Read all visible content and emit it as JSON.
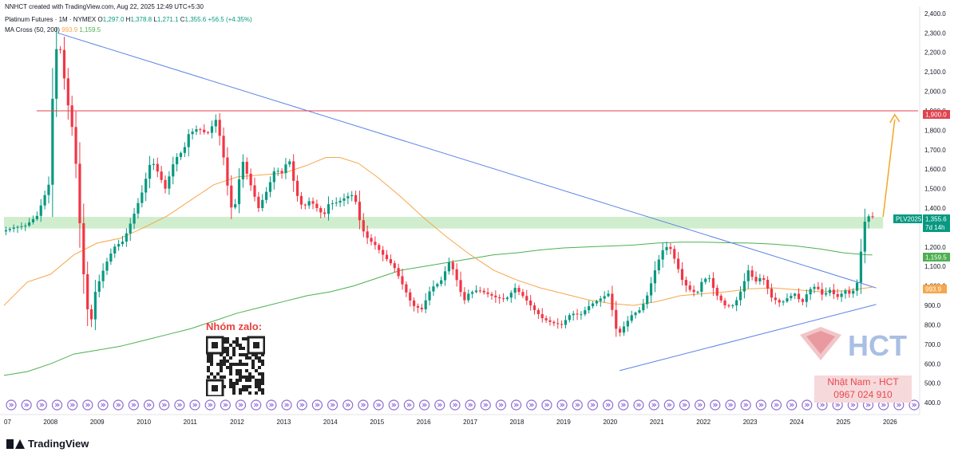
{
  "header": {
    "creator": "NNHCT created with TradingView.com, Aug 22, 2025 12:49 UTC+5:30",
    "symbol_name": "Platinum Futures · 1M · NYMEX",
    "ohlc": {
      "o_label": "O",
      "o": "1,297.0",
      "h_label": "H",
      "h": "1,378.8",
      "l_label": "L",
      "l": "1,271.1",
      "c_label": "C",
      "c": "1,355.6",
      "change": "+56.5 (+4.35%)"
    },
    "indicator_name": "MA Cross (50, 200)",
    "ma50_value": "993.9",
    "ma200_value": "1,159.5"
  },
  "price_tags": {
    "resistance": "1,900.0",
    "symbol": "PLV2025",
    "last_price": "1,355.6",
    "countdown": "7d 14h",
    "ma200": "1,159.5",
    "ma50": "993.9"
  },
  "overlay": {
    "zalo_title": "Nhóm zalo:",
    "contact_name": "Nhật Nam - HCT",
    "contact_phone": "0967 024 910",
    "brand": "HCT"
  },
  "footer": {
    "logo_text": "TradingView"
  },
  "colors": {
    "up": "#089981",
    "down": "#f23645",
    "ma50": "#f7a64a",
    "ma200": "#4caf50",
    "trendline": "#5b83e6",
    "resistance": "#e0424e",
    "zone": "#c8ebc6",
    "arrow": "#f5a623",
    "event": "#8e6bd6"
  },
  "chart_data": {
    "type": "candlestick",
    "title": "Platinum Futures · 1M · NYMEX",
    "y_ticks": [
      "400.0",
      "500.0",
      "600.0",
      "700.0",
      "800.0",
      "900.0",
      "1,000.0",
      "1,100.0",
      "1,200.0",
      "1,300.0",
      "1,400.0",
      "1,500.0",
      "1,600.0",
      "1,700.0",
      "1,800.0",
      "1,900.0",
      "2,000.0",
      "2,100.0",
      "2,200.0",
      "2,300.0",
      "2,400.0"
    ],
    "y_tick_values": [
      400,
      500,
      600,
      700,
      800,
      900,
      1000,
      1100,
      1200,
      1300,
      1400,
      1500,
      1600,
      1700,
      1800,
      1900,
      2000,
      2100,
      2200,
      2300,
      2400
    ],
    "x_ticks": [
      "07",
      "2008",
      "2009",
      "2010",
      "2011",
      "2012",
      "2013",
      "2014",
      "2015",
      "2016",
      "2017",
      "2018",
      "2019",
      "2020",
      "2021",
      "2022",
      "2023",
      "2024",
      "2025",
      "2026"
    ],
    "x_tick_values": [
      2007.0,
      2008.0,
      2009.0,
      2010.0,
      2011.0,
      2012.0,
      2013.0,
      2014.0,
      2015.0,
      2016.0,
      2017.0,
      2018.0,
      2019.0,
      2020.0,
      2021.0,
      2022.0,
      2023.0,
      2024.0,
      2025.0,
      2026.0
    ],
    "xlim": [
      2007.0,
      2026.6
    ],
    "ylim": [
      380,
      2420
    ],
    "price_path": [
      [
        2007.0,
        1280
      ],
      [
        2007.25,
        1300
      ],
      [
        2007.5,
        1310
      ],
      [
        2007.75,
        1360
      ],
      [
        2008.0,
        1520
      ],
      [
        2008.1,
        2050
      ],
      [
        2008.2,
        2300
      ],
      [
        2008.4,
        1950
      ],
      [
        2008.55,
        1750
      ],
      [
        2008.7,
        1200
      ],
      [
        2008.8,
        920
      ],
      [
        2008.9,
        800
      ],
      [
        2009.0,
        970
      ],
      [
        2009.2,
        1100
      ],
      [
        2009.4,
        1200
      ],
      [
        2009.6,
        1230
      ],
      [
        2009.8,
        1350
      ],
      [
        2010.0,
        1480
      ],
      [
        2010.2,
        1650
      ],
      [
        2010.35,
        1580
      ],
      [
        2010.5,
        1500
      ],
      [
        2010.7,
        1650
      ],
      [
        2010.9,
        1700
      ],
      [
        2011.0,
        1780
      ],
      [
        2011.2,
        1810
      ],
      [
        2011.4,
        1780
      ],
      [
        2011.6,
        1860
      ],
      [
        2011.75,
        1660
      ],
      [
        2011.9,
        1400
      ],
      [
        2012.0,
        1420
      ],
      [
        2012.15,
        1650
      ],
      [
        2012.3,
        1540
      ],
      [
        2012.5,
        1400
      ],
      [
        2012.7,
        1500
      ],
      [
        2012.85,
        1600
      ],
      [
        2013.0,
        1580
      ],
      [
        2013.15,
        1660
      ],
      [
        2013.3,
        1480
      ],
      [
        2013.45,
        1400
      ],
      [
        2013.6,
        1440
      ],
      [
        2013.75,
        1400
      ],
      [
        2013.9,
        1360
      ],
      [
        2014.0,
        1420
      ],
      [
        2014.2,
        1430
      ],
      [
        2014.4,
        1460
      ],
      [
        2014.55,
        1470
      ],
      [
        2014.7,
        1300
      ],
      [
        2014.85,
        1240
      ],
      [
        2015.0,
        1210
      ],
      [
        2015.2,
        1150
      ],
      [
        2015.4,
        1100
      ],
      [
        2015.6,
        1000
      ],
      [
        2015.8,
        900
      ],
      [
        2016.0,
        880
      ],
      [
        2016.2,
        990
      ],
      [
        2016.4,
        1020
      ],
      [
        2016.6,
        1130
      ],
      [
        2016.75,
        1030
      ],
      [
        2016.9,
        920
      ],
      [
        2017.0,
        960
      ],
      [
        2017.2,
        980
      ],
      [
        2017.4,
        960
      ],
      [
        2017.6,
        940
      ],
      [
        2017.8,
        930
      ],
      [
        2018.0,
        990
      ],
      [
        2018.2,
        940
      ],
      [
        2018.4,
        880
      ],
      [
        2018.6,
        830
      ],
      [
        2018.8,
        810
      ],
      [
        2019.0,
        800
      ],
      [
        2019.2,
        860
      ],
      [
        2019.4,
        850
      ],
      [
        2019.6,
        900
      ],
      [
        2019.8,
        930
      ],
      [
        2020.0,
        960
      ],
      [
        2020.1,
        860
      ],
      [
        2020.2,
        740
      ],
      [
        2020.3,
        780
      ],
      [
        2020.5,
        850
      ],
      [
        2020.7,
        880
      ],
      [
        2020.85,
        960
      ],
      [
        2021.0,
        1080
      ],
      [
        2021.15,
        1180
      ],
      [
        2021.3,
        1210
      ],
      [
        2021.45,
        1120
      ],
      [
        2021.6,
        1020
      ],
      [
        2021.75,
        980
      ],
      [
        2021.9,
        960
      ],
      [
        2022.0,
        1020
      ],
      [
        2022.15,
        1050
      ],
      [
        2022.3,
        960
      ],
      [
        2022.5,
        900
      ],
      [
        2022.7,
        900
      ],
      [
        2022.85,
        980
      ],
      [
        2023.0,
        1080
      ],
      [
        2023.15,
        1020
      ],
      [
        2023.3,
        1050
      ],
      [
        2023.5,
        940
      ],
      [
        2023.7,
        910
      ],
      [
        2023.85,
        940
      ],
      [
        2024.0,
        960
      ],
      [
        2024.15,
        910
      ],
      [
        2024.3,
        980
      ],
      [
        2024.45,
        1000
      ],
      [
        2024.6,
        950
      ],
      [
        2024.75,
        980
      ],
      [
        2024.9,
        940
      ],
      [
        2025.0,
        960
      ],
      [
        2025.1,
        980
      ],
      [
        2025.2,
        950
      ],
      [
        2025.3,
        1000
      ],
      [
        2025.38,
        1040
      ],
      [
        2025.45,
        1300
      ],
      [
        2025.55,
        1360
      ],
      [
        2025.62,
        1356
      ]
    ],
    "ma50": [
      [
        2007.0,
        900
      ],
      [
        2007.5,
        1020
      ],
      [
        2008.0,
        1060
      ],
      [
        2008.5,
        1160
      ],
      [
        2009.0,
        1220
      ],
      [
        2009.5,
        1245
      ],
      [
        2010.0,
        1300
      ],
      [
        2010.5,
        1360
      ],
      [
        2011.0,
        1440
      ],
      [
        2011.5,
        1520
      ],
      [
        2012.0,
        1560
      ],
      [
        2012.5,
        1570
      ],
      [
        2013.0,
        1580
      ],
      [
        2013.5,
        1620
      ],
      [
        2013.9,
        1660
      ],
      [
        2014.2,
        1660
      ],
      [
        2014.6,
        1630
      ],
      [
        2015.0,
        1560
      ],
      [
        2015.5,
        1460
      ],
      [
        2016.0,
        1350
      ],
      [
        2016.5,
        1250
      ],
      [
        2017.0,
        1160
      ],
      [
        2017.5,
        1080
      ],
      [
        2018.0,
        1030
      ],
      [
        2018.5,
        990
      ],
      [
        2019.0,
        960
      ],
      [
        2019.5,
        930
      ],
      [
        2020.0,
        910
      ],
      [
        2020.5,
        900
      ],
      [
        2021.0,
        920
      ],
      [
        2021.5,
        950
      ],
      [
        2022.0,
        960
      ],
      [
        2022.5,
        970
      ],
      [
        2023.0,
        985
      ],
      [
        2023.5,
        990
      ],
      [
        2024.0,
        980
      ],
      [
        2024.5,
        970
      ],
      [
        2025.0,
        975
      ],
      [
        2025.5,
        990
      ],
      [
        2025.62,
        994
      ]
    ],
    "ma200": [
      [
        2007.0,
        540
      ],
      [
        2007.5,
        560
      ],
      [
        2008.0,
        600
      ],
      [
        2008.5,
        650
      ],
      [
        2009.0,
        670
      ],
      [
        2009.5,
        690
      ],
      [
        2010.0,
        720
      ],
      [
        2010.5,
        750
      ],
      [
        2011.0,
        780
      ],
      [
        2011.5,
        820
      ],
      [
        2012.0,
        860
      ],
      [
        2012.5,
        890
      ],
      [
        2013.0,
        920
      ],
      [
        2013.5,
        950
      ],
      [
        2014.0,
        970
      ],
      [
        2014.5,
        1000
      ],
      [
        2015.0,
        1040
      ],
      [
        2015.5,
        1080
      ],
      [
        2016.0,
        1100
      ],
      [
        2016.5,
        1120
      ],
      [
        2017.0,
        1140
      ],
      [
        2017.5,
        1160
      ],
      [
        2018.0,
        1170
      ],
      [
        2018.5,
        1185
      ],
      [
        2019.0,
        1195
      ],
      [
        2019.5,
        1200
      ],
      [
        2020.0,
        1205
      ],
      [
        2020.5,
        1210
      ],
      [
        2021.0,
        1220
      ],
      [
        2021.5,
        1225
      ],
      [
        2022.0,
        1225
      ],
      [
        2022.5,
        1222
      ],
      [
        2023.0,
        1220
      ],
      [
        2023.5,
        1215
      ],
      [
        2024.0,
        1205
      ],
      [
        2024.5,
        1190
      ],
      [
        2025.0,
        1170
      ],
      [
        2025.5,
        1160
      ],
      [
        2025.62,
        1159.5
      ]
    ],
    "lines": [
      {
        "name": "descending trendline",
        "points": [
          [
            2008.15,
            2300
          ],
          [
            2025.7,
            990
          ]
        ]
      },
      {
        "name": "ascending trendline",
        "points": [
          [
            2020.2,
            565
          ],
          [
            2025.7,
            905
          ]
        ]
      },
      {
        "name": "resistance 1,900",
        "points": [
          [
            2007.7,
            1900
          ],
          [
            2026.6,
            1900
          ]
        ]
      }
    ],
    "zone": {
      "from": 1295,
      "to": 1355,
      "x0": 2007.0,
      "x1": 2025.85
    },
    "projection_arrow": {
      "from": [
        2025.85,
        1355
      ],
      "to": [
        2026.1,
        1880
      ]
    },
    "event_markers_count": 60
  }
}
